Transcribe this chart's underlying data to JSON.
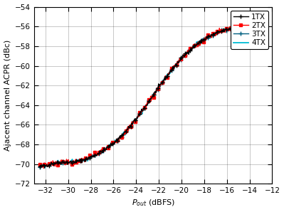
{
  "title": "",
  "xlabel": "$P_{out}$ (dBFS)",
  "ylabel": "Ajacent channel ACPR (dBc)",
  "xlim": [
    -33,
    -12
  ],
  "ylim": [
    -72,
    -54
  ],
  "xticks": [
    -32,
    -30,
    -28,
    -26,
    -24,
    -22,
    -20,
    -18,
    -16,
    -14,
    -12
  ],
  "yticks": [
    -72,
    -70,
    -68,
    -66,
    -64,
    -62,
    -60,
    -58,
    -56,
    -54
  ],
  "x_start": -32.5,
  "x_end": -12.5,
  "num_points": 400,
  "series": [
    {
      "label": "1TX",
      "color": "#000000",
      "linewidth": 1.0,
      "marker": "+",
      "markersize": 4,
      "markevery": 8,
      "zorder": 4,
      "noise_seed": 42,
      "noise_scale": 0.1
    },
    {
      "label": "2TX",
      "color": "#ff0000",
      "linewidth": 1.0,
      "marker": "s",
      "markersize": 3,
      "markevery": 8,
      "zorder": 3,
      "noise_seed": 7,
      "noise_scale": 0.14
    },
    {
      "label": "3TX",
      "color": "#006080",
      "linewidth": 1.0,
      "marker": "+",
      "markersize": 4,
      "markevery": 8,
      "zorder": 2,
      "noise_seed": 13,
      "noise_scale": 0.08
    },
    {
      "label": "4TX",
      "color": "#00bcd4",
      "linewidth": 1.3,
      "marker": "None",
      "markersize": 0,
      "markevery": 1,
      "zorder": 1,
      "noise_seed": 99,
      "noise_scale": 0.1
    }
  ],
  "background_color": "#ffffff",
  "grid_color": "#999999",
  "legend_fontsize": 7.5,
  "axis_fontsize": 8,
  "tick_fontsize": 7.5
}
